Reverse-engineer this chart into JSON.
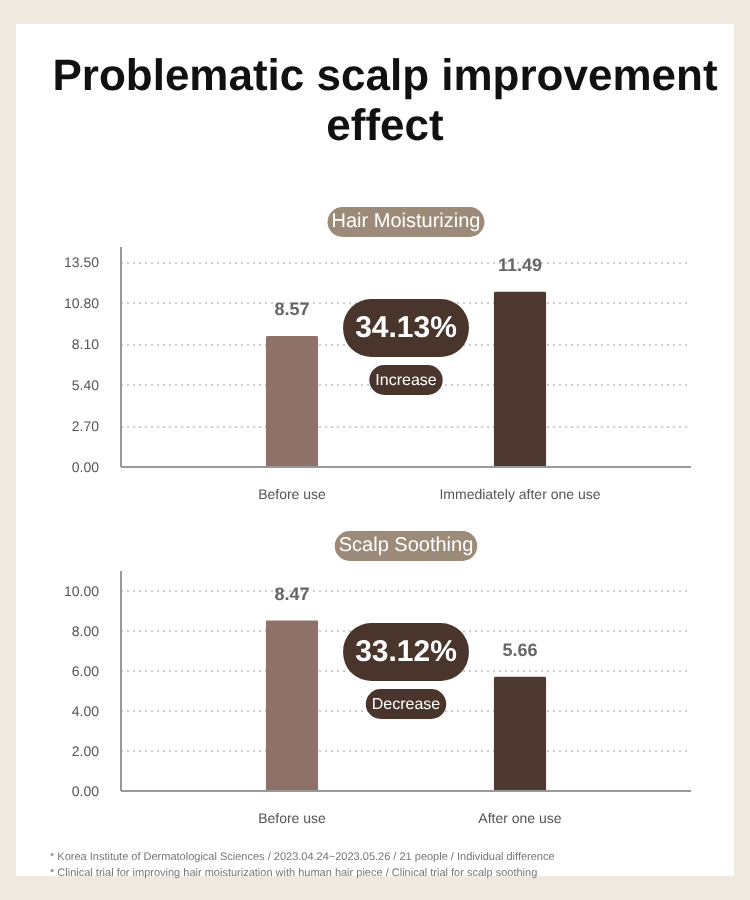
{
  "chart_data": [
    {
      "type": "bar",
      "title": "Problematic scalp improvement effect",
      "subtitle": "Hair Moisturizing",
      "categories": [
        "Before use",
        "Immediately after one use"
      ],
      "values": [
        8.57,
        11.49
      ],
      "colors": [
        "#8e7268",
        "#4e3a30"
      ],
      "data_labels": true,
      "ylim": [
        0,
        14.5
      ],
      "yticks": [
        {
          "value": 0,
          "label": "0.00"
        },
        {
          "value": 2.7,
          "label": "2.70"
        },
        {
          "value": 5.4,
          "label": "5.40"
        },
        {
          "value": 8.1,
          "label": "8.10"
        },
        {
          "value": 10.8,
          "label": "10.80"
        },
        {
          "value": 13.5,
          "label": "13.50"
        }
      ],
      "grid": "y",
      "annotations": [
        "34.13%",
        "Increase"
      ]
    },
    {
      "type": "bar",
      "title": "Scalp Soothing",
      "categories": [
        "Before use",
        "After one use"
      ],
      "values": [
        8.47,
        5.66
      ],
      "colors": [
        "#8e7268",
        "#4e3a30"
      ],
      "data_labels": true,
      "ylim": [
        0,
        11
      ],
      "yticks": [
        {
          "value": 0,
          "label": "0.00"
        },
        {
          "value": 2,
          "label": "2.00"
        },
        {
          "value": 4,
          "label": "4.00"
        },
        {
          "value": 6,
          "label": "6.00"
        },
        {
          "value": 8,
          "label": "8.00"
        },
        {
          "value": 10,
          "label": "10.00"
        }
      ],
      "grid": "y",
      "annotations": [
        "33.12%",
        "Decrease",
        "* Korea Institute of Dermatological Sciences / 2023.04.24~2023.05.26 / 21 people / Individual difference",
        "* Clinical trial for improving hair moisturization with human hair piece / Clinical trial for scalp soothing"
      ]
    }
  ]
}
